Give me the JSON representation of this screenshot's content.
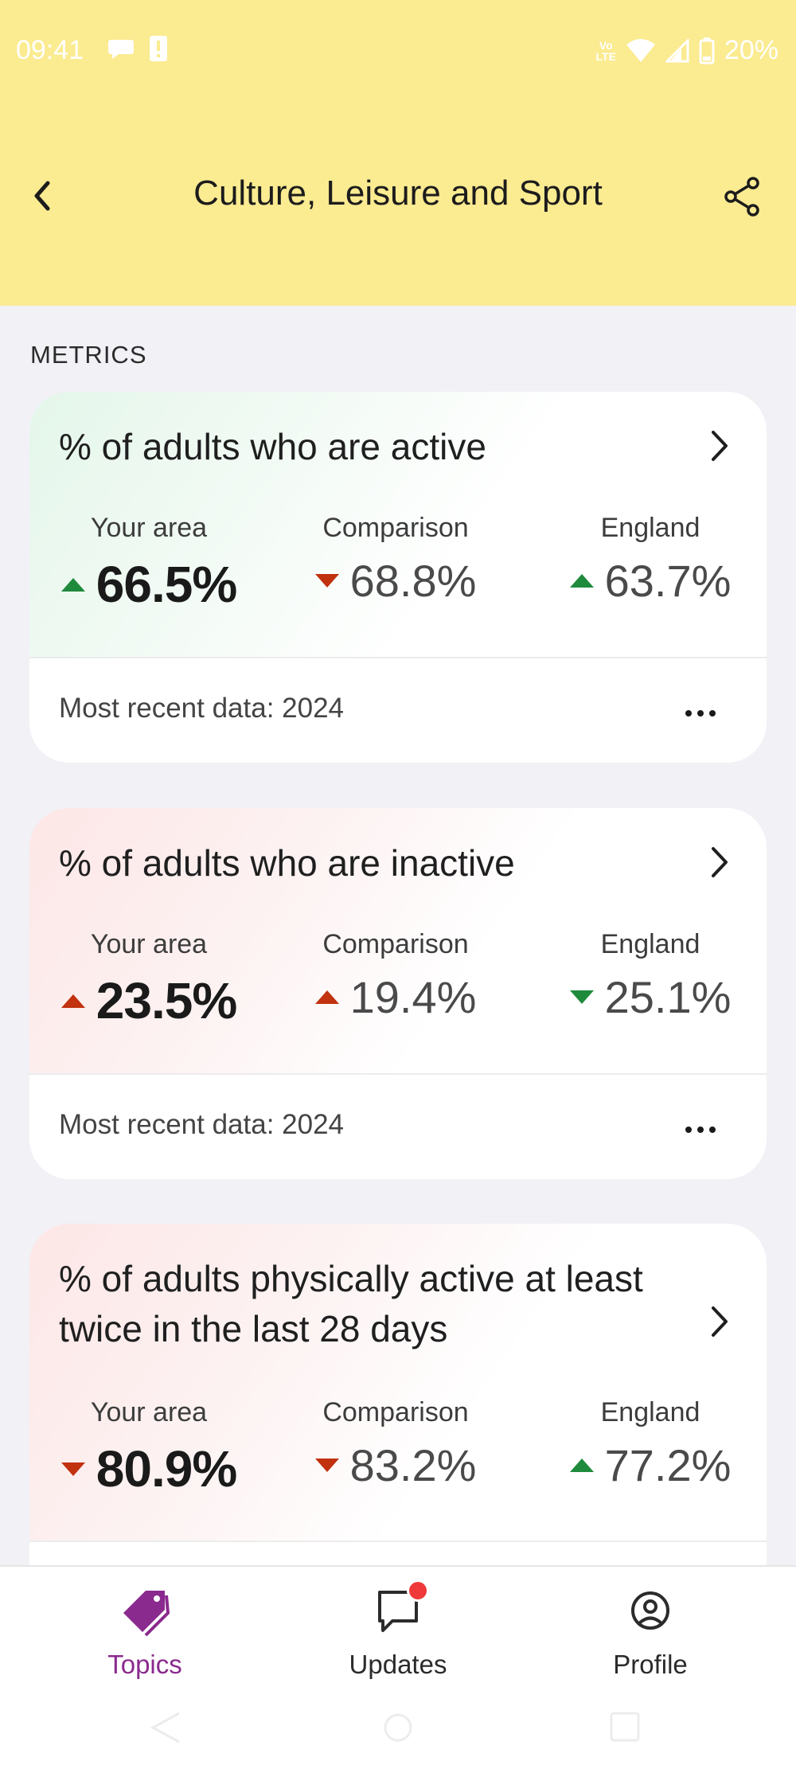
{
  "status_bar": {
    "time": "09:41",
    "network_label": "Vo LTE",
    "battery": "20%"
  },
  "header": {
    "title": "Culture, Leisure and Sport",
    "background_color": "#fbeb91"
  },
  "section_label": "METRICS",
  "cards": [
    {
      "title": "% of adults who are active",
      "tint": "green",
      "your_area": {
        "label": "Your area",
        "value": "66.5%",
        "trend": "up",
        "status": "good"
      },
      "comparison": {
        "label": "Comparison",
        "value": "68.8%",
        "trend": "down",
        "status": "bad"
      },
      "england": {
        "label": "England",
        "value": "63.7%",
        "trend": "up",
        "status": "good"
      },
      "footer": "Most recent data: 2024"
    },
    {
      "title": "% of adults who are inactive",
      "tint": "red",
      "your_area": {
        "label": "Your area",
        "value": "23.5%",
        "trend": "up",
        "status": "bad"
      },
      "comparison": {
        "label": "Comparison",
        "value": "19.4%",
        "trend": "up",
        "status": "bad"
      },
      "england": {
        "label": "England",
        "value": "25.1%",
        "trend": "down",
        "status": "good"
      },
      "footer": "Most recent data: 2024"
    },
    {
      "title_line1": "% of adults physically active at least",
      "title_line2": "twice in the last 28 days",
      "tint": "red",
      "your_area": {
        "label": "Your area",
        "value": "80.9%",
        "trend": "down",
        "status": "bad"
      },
      "comparison": {
        "label": "Comparison",
        "value": "83.2%",
        "trend": "down",
        "status": "bad"
      },
      "england": {
        "label": "England",
        "value": "77.2%",
        "trend": "up",
        "status": "good"
      }
    }
  ],
  "colors": {
    "good": "#1f8a3c",
    "bad": "#c1320f",
    "accent": "#8b2a8e"
  },
  "bottom_nav": {
    "items": [
      {
        "label": "Topics",
        "icon": "tag-icon",
        "active": true
      },
      {
        "label": "Updates",
        "icon": "chat-bubble-icon",
        "active": false,
        "badge": true
      },
      {
        "label": "Profile",
        "icon": "user-circle-icon",
        "active": false
      }
    ]
  }
}
